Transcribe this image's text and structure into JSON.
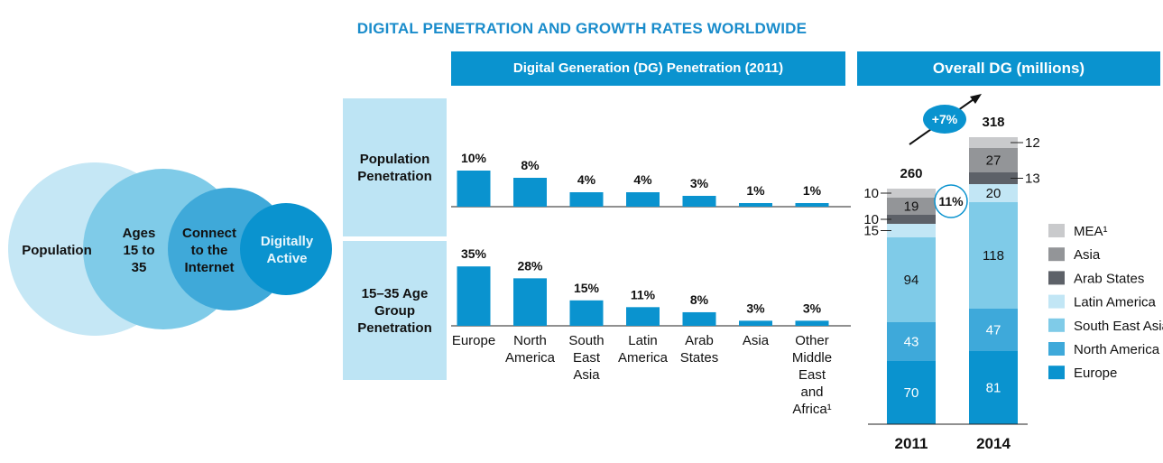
{
  "title": "DIGITAL PENETRATION AND GROWTH RATES WORLDWIDE",
  "venn": {
    "labels": [
      "Population",
      "Ages 15 to 35",
      "Connect to the Internet",
      "Digitally Active"
    ],
    "colors": [
      "#c5e7f5",
      "#7fcbe8",
      "#3fa9d9",
      "#0a93cf"
    ]
  },
  "penetration_header": "Digital Generation (DG) Penetration (2011)",
  "dg_header": "Overall  DG (millions)",
  "row_labels": {
    "population": "Population Penetration",
    "age_group": "15–35 Age Group Penetration"
  },
  "chart_data": [
    {
      "type": "bar",
      "title": "Digital Generation (DG) Penetration (2011)",
      "categories": [
        "Europe",
        "North America",
        "South East Asia",
        "Latin America",
        "Arab States",
        "Asia",
        "Other Middle East and Africa¹"
      ],
      "series": [
        {
          "name": "Population Penetration",
          "values": [
            10,
            8,
            4,
            4,
            3,
            1,
            1
          ],
          "labels": [
            "10%",
            "8%",
            "4%",
            "4%",
            "3%",
            "1%",
            "1%"
          ]
        },
        {
          "name": "15–35 Age Group Penetration",
          "values": [
            35,
            28,
            15,
            11,
            8,
            3,
            3
          ],
          "labels": [
            "35%",
            "28%",
            "15%",
            "11%",
            "8%",
            "3%",
            "3%"
          ]
        }
      ],
      "color": "#0a93cf"
    },
    {
      "type": "bar",
      "stacked": true,
      "title": "Overall  DG (millions)",
      "categories": [
        "2011",
        "2014"
      ],
      "totals": [
        "260",
        "318"
      ],
      "growth_label": "+7%",
      "share_label": "11%",
      "series": [
        {
          "name": "Europe",
          "values": [
            70,
            81
          ],
          "color": "#0a93cf"
        },
        {
          "name": "North America",
          "values": [
            43,
            47
          ],
          "color": "#3ea9da"
        },
        {
          "name": "South East Asia",
          "values": [
            94,
            118
          ],
          "color": "#7fcbe8"
        },
        {
          "name": "Latin America",
          "values": [
            15,
            20
          ],
          "color": "#c2e6f5"
        },
        {
          "name": "Arab States",
          "values": [
            10,
            13
          ],
          "color": "#5d6168"
        },
        {
          "name": "Asia",
          "values": [
            19,
            27
          ],
          "color": "#939598"
        },
        {
          "name": "MEA¹",
          "values": [
            10,
            12
          ],
          "color": "#c9cacc"
        }
      ],
      "legend_order": [
        "MEA¹",
        "Asia",
        "Arab States",
        "Latin America",
        "South East Asia",
        "North America",
        "Europe"
      ],
      "legend_position": "right"
    }
  ]
}
